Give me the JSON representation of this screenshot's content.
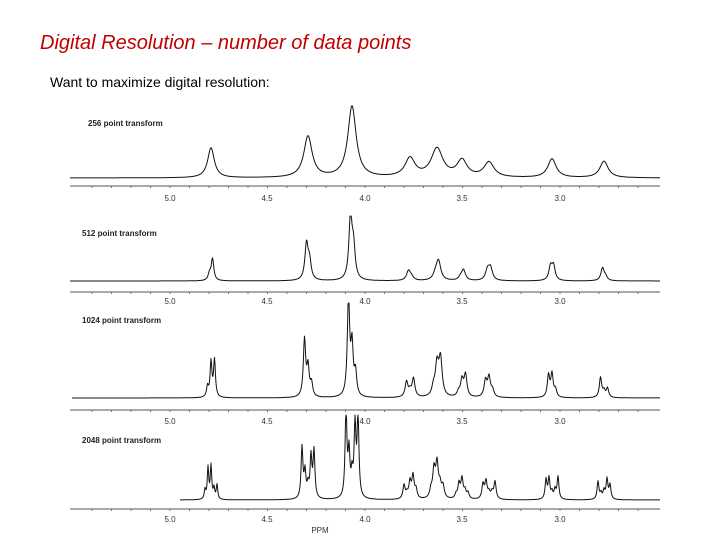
{
  "slide": {
    "title": "Digital Resolution – number of data points",
    "bullet": "Want to maximize digital resolution:"
  },
  "figure": {
    "x_axis_label": "PPM",
    "panels": [
      {
        "label": "256 point transform",
        "detail": 1
      },
      {
        "label": "512 point transform",
        "detail": 2
      },
      {
        "label": "1024 point transform",
        "detail": 3
      },
      {
        "label": "2048 point transform",
        "detail": 4
      }
    ],
    "ticks": [
      "5.0",
      "4.5",
      "4.0",
      "3.5",
      "3.0"
    ],
    "colors": {
      "title": "#c00000",
      "trace": "#111111"
    }
  }
}
